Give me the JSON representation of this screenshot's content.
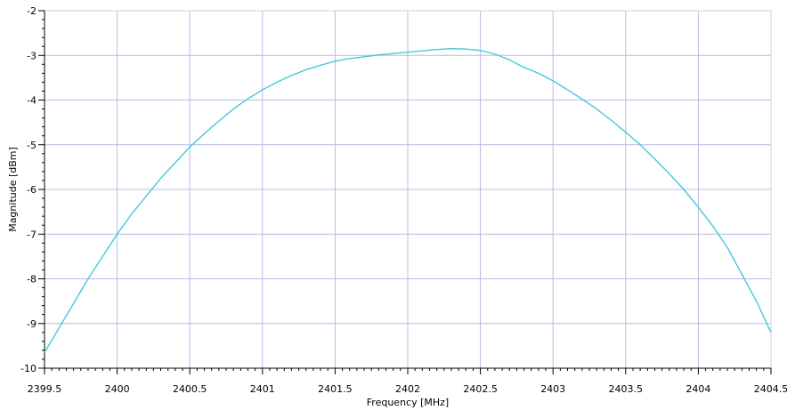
{
  "chart_data": {
    "type": "line",
    "title": "",
    "xlabel": "Frequency [MHz]",
    "ylabel": "Magnitude [dBm]",
    "xlim": [
      2399.5,
      2404.5
    ],
    "ylim": [
      -10,
      -2
    ],
    "xticks": [
      2399.5,
      2400,
      2400.5,
      2401,
      2401.5,
      2402,
      2402.5,
      2403,
      2403.5,
      2404,
      2404.5
    ],
    "yticks": [
      -10,
      -9,
      -8,
      -7,
      -6,
      -5,
      -4,
      -3,
      -2
    ],
    "xtick_labels": [
      "2399.5",
      "2400",
      "2400.5",
      "2401",
      "2401.5",
      "2402",
      "2402.5",
      "2403",
      "2403.5",
      "2404",
      "2404.5"
    ],
    "ytick_labels": [
      "-10",
      "-9",
      "-8",
      "-7",
      "-6",
      "-5",
      "-4",
      "-3",
      "-2"
    ],
    "grid": true,
    "series": [
      {
        "color": "#45c9db",
        "x": [
          2399.5,
          2399.6,
          2399.7,
          2399.8,
          2399.9,
          2400.0,
          2400.1,
          2400.2,
          2400.3,
          2400.4,
          2400.5,
          2400.6,
          2400.7,
          2400.8,
          2400.9,
          2401.0,
          2401.1,
          2401.2,
          2401.3,
          2401.4,
          2401.5,
          2401.6,
          2401.7,
          2401.8,
          2401.9,
          2402.0,
          2402.1,
          2402.2,
          2402.3,
          2402.4,
          2402.5,
          2402.6,
          2402.7,
          2402.8,
          2402.9,
          2403.0,
          2403.1,
          2403.2,
          2403.3,
          2403.4,
          2403.5,
          2403.6,
          2403.7,
          2403.8,
          2403.9,
          2404.0,
          2404.1,
          2404.2,
          2404.3,
          2404.4,
          2404.5
        ],
        "y": [
          -9.65,
          -9.1,
          -8.55,
          -8.0,
          -7.5,
          -7.0,
          -6.55,
          -6.15,
          -5.75,
          -5.4,
          -5.05,
          -4.75,
          -4.47,
          -4.2,
          -3.97,
          -3.77,
          -3.6,
          -3.45,
          -3.32,
          -3.22,
          -3.13,
          -3.07,
          -3.03,
          -2.99,
          -2.96,
          -2.93,
          -2.9,
          -2.87,
          -2.85,
          -2.86,
          -2.89,
          -2.97,
          -3.1,
          -3.27,
          -3.4,
          -3.57,
          -3.77,
          -3.98,
          -4.2,
          -4.45,
          -4.72,
          -5.0,
          -5.32,
          -5.65,
          -6.0,
          -6.4,
          -6.82,
          -7.3,
          -7.9,
          -8.5,
          -9.2
        ]
      }
    ]
  }
}
